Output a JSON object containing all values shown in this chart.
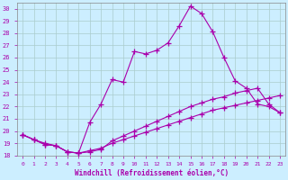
{
  "xlabel": "Windchill (Refroidissement éolien,°C)",
  "xlim": [
    -0.5,
    23.5
  ],
  "ylim": [
    18,
    30.5
  ],
  "xticks": [
    0,
    1,
    2,
    3,
    4,
    5,
    6,
    7,
    8,
    9,
    10,
    11,
    12,
    13,
    14,
    15,
    16,
    17,
    18,
    19,
    20,
    21,
    22,
    23
  ],
  "yticks": [
    18,
    19,
    20,
    21,
    22,
    23,
    24,
    25,
    26,
    27,
    28,
    29,
    30
  ],
  "bg_color": "#cceeff",
  "line_color": "#aa00aa",
  "grid_color": "#aacccc",
  "line1_x": [
    0,
    1,
    2,
    3,
    4,
    5,
    6,
    7,
    8,
    9,
    10,
    11,
    12,
    13,
    14,
    15,
    16,
    17,
    18,
    19,
    20,
    21,
    22,
    23
  ],
  "line1_y": [
    19.7,
    19.3,
    19.0,
    18.8,
    18.3,
    18.2,
    20.7,
    22.2,
    24.2,
    24.0,
    26.5,
    26.3,
    26.6,
    27.2,
    28.6,
    30.2,
    29.6,
    28.1,
    26.0,
    24.1,
    23.5,
    22.2,
    22.0,
    21.5
  ],
  "line2_x": [
    0,
    1,
    2,
    3,
    4,
    5,
    6,
    7,
    8,
    9,
    10,
    11,
    12,
    13,
    14,
    15,
    16,
    17,
    18,
    19,
    20,
    21,
    22,
    23
  ],
  "line2_y": [
    19.7,
    19.3,
    18.9,
    18.8,
    18.3,
    18.2,
    18.3,
    18.5,
    19.2,
    19.6,
    20.0,
    20.4,
    20.8,
    21.2,
    21.6,
    22.0,
    22.3,
    22.6,
    22.8,
    23.1,
    23.3,
    23.5,
    22.2,
    21.5
  ],
  "line3_x": [
    0,
    1,
    2,
    3,
    4,
    5,
    6,
    7,
    8,
    9,
    10,
    11,
    12,
    13,
    14,
    15,
    16,
    17,
    18,
    19,
    20,
    21,
    22,
    23
  ],
  "line3_y": [
    19.7,
    19.3,
    18.9,
    18.8,
    18.3,
    18.2,
    18.4,
    18.6,
    19.0,
    19.3,
    19.6,
    19.9,
    20.2,
    20.5,
    20.8,
    21.1,
    21.4,
    21.7,
    21.9,
    22.1,
    22.3,
    22.5,
    22.7,
    22.9
  ]
}
